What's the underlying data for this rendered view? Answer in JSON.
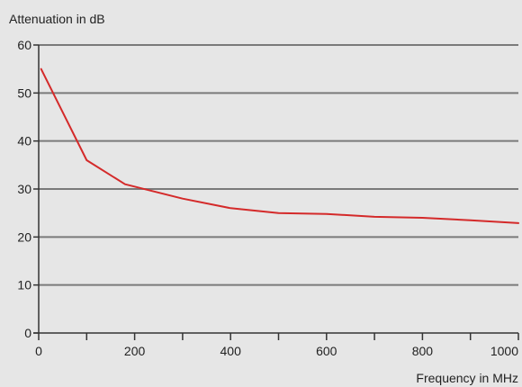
{
  "chart_data": {
    "type": "line",
    "ylabel": "Attenuation in dB",
    "xlabel": "Frequency in MHz",
    "xlim": [
      0,
      1000
    ],
    "ylim": [
      0,
      60
    ],
    "x_ticks": [
      0,
      200,
      400,
      600,
      800,
      1000
    ],
    "x_minor_ticks": [
      100,
      300,
      500,
      700,
      900
    ],
    "y_ticks": [
      0,
      10,
      20,
      30,
      40,
      50,
      60
    ],
    "grid": "horizontal",
    "series": [
      {
        "color": "#d42a2a",
        "x": [
          5,
          100,
          180,
          300,
          400,
          500,
          600,
          700,
          800,
          900,
          1000
        ],
        "y": [
          55,
          36,
          31,
          28,
          26,
          25,
          24.8,
          24.2,
          24,
          23.5,
          22.9
        ]
      }
    ]
  }
}
